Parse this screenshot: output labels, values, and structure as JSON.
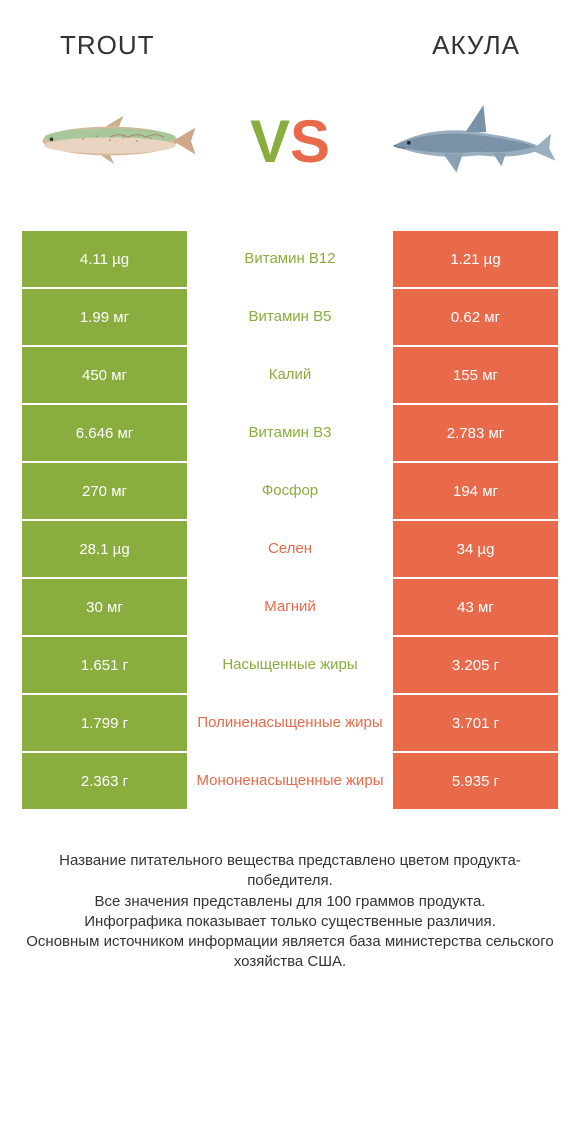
{
  "colors": {
    "left": "#8aad3f",
    "right": "#e86a4a",
    "bg": "#ffffff",
    "text": "#333333",
    "white": "#ffffff"
  },
  "header": {
    "left": "Trout",
    "right": "Акула"
  },
  "vs": {
    "v": "V",
    "s": "S"
  },
  "rows": [
    {
      "left": "4.11 µg",
      "label": "Витамин B12",
      "right": "1.21 µg",
      "winner": "left"
    },
    {
      "left": "1.99 мг",
      "label": "Витамин B5",
      "right": "0.62 мг",
      "winner": "left"
    },
    {
      "left": "450 мг",
      "label": "Калий",
      "right": "155 мг",
      "winner": "left"
    },
    {
      "left": "6.646 мг",
      "label": "Витамин B3",
      "right": "2.783 мг",
      "winner": "left"
    },
    {
      "left": "270 мг",
      "label": "Фосфор",
      "right": "194 мг",
      "winner": "left"
    },
    {
      "left": "28.1 µg",
      "label": "Селен",
      "right": "34 µg",
      "winner": "right"
    },
    {
      "left": "30 мг",
      "label": "Магний",
      "right": "43 мг",
      "winner": "right"
    },
    {
      "left": "1.651 г",
      "label": "Насыщенные жиры",
      "right": "3.205 г",
      "winner": "left"
    },
    {
      "left": "1.799 г",
      "label": "Полиненасыщенные жиры",
      "right": "3.701 г",
      "winner": "right"
    },
    {
      "left": "2.363 г",
      "label": "Мононенасыщенные жиры",
      "right": "5.935 г",
      "winner": "right"
    }
  ],
  "footer": {
    "line1": "Название питательного вещества представлено цветом продукта-победителя.",
    "line2": "Все значения представлены для 100 граммов продукта.",
    "line3": "Инфографика показывает только существенные различия.",
    "line4": "Основным источником информации является база министерства сельского хозяйства США."
  }
}
